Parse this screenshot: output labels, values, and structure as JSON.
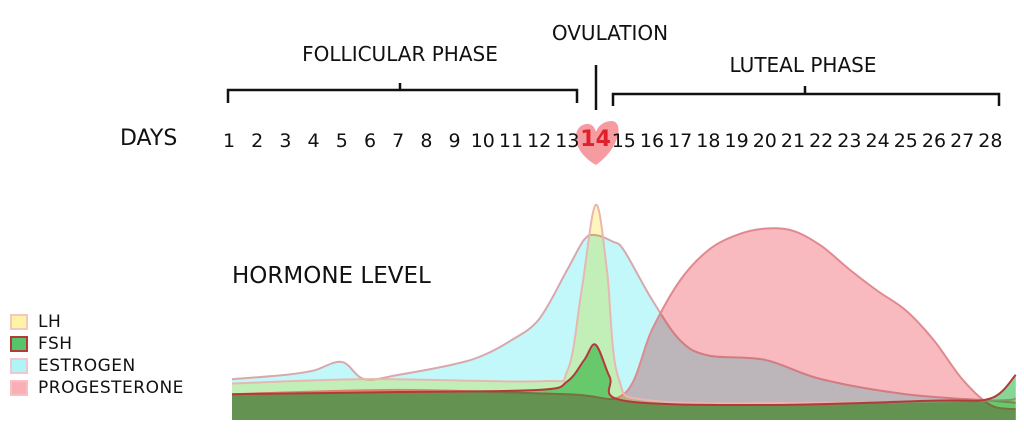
{
  "labels": {
    "follicular": "FOLLICULAR PHASE",
    "ovulation": "OVULATION",
    "luteal": "LUTEAL PHASE",
    "days": "DAYS",
    "hormone_level": "HORMONE LEVEL"
  },
  "colors": {
    "lh": "#fff3a6",
    "lh_stroke": "#e8b7b0",
    "fsh": "#55c46a",
    "fsh_stroke": "#b43a3a",
    "estrogen": "#aef5f8",
    "estrogen_stroke": "#d8a8ad",
    "progesterone": "#f6a3a8",
    "progesterone_stroke": "#e08a90",
    "heart": "#f48a8f",
    "heart_text": "#e0202a"
  },
  "chart_data": {
    "type": "area",
    "title": "HORMONE LEVEL",
    "xlabel": "DAYS",
    "ylabel": "",
    "x_ticks": [
      "1",
      "2",
      "3",
      "4",
      "5",
      "6",
      "7",
      "8",
      "9",
      "10",
      "11",
      "12",
      "13",
      "14",
      "15",
      "16",
      "17",
      "18",
      "19",
      "20",
      "21",
      "22",
      "23",
      "24",
      "25",
      "26",
      "27",
      "28"
    ],
    "highlight_tick": "14",
    "xlim": [
      1,
      28.9
    ],
    "ylim": [
      0,
      100
    ],
    "legend": [
      "LH",
      "FSH",
      "ESTROGEN",
      "PROGESTERONE"
    ],
    "legend_position": "bottom-left",
    "series": [
      {
        "name": "ESTROGEN",
        "key": "estrogen",
        "points": [
          [
            1,
            19
          ],
          [
            3,
            21
          ],
          [
            4,
            23
          ],
          [
            5,
            27
          ],
          [
            5.8,
            19
          ],
          [
            7,
            21
          ],
          [
            9,
            26
          ],
          [
            10,
            30
          ],
          [
            11,
            37
          ],
          [
            12,
            47
          ],
          [
            13,
            70
          ],
          [
            13.6,
            84
          ],
          [
            14,
            86
          ],
          [
            14.6,
            83
          ],
          [
            15,
            79
          ],
          [
            16,
            56
          ],
          [
            17,
            37
          ],
          [
            18,
            30
          ],
          [
            20,
            28
          ],
          [
            22,
            19
          ],
          [
            25,
            12
          ],
          [
            28,
            9
          ],
          [
            28.9,
            8
          ]
        ]
      },
      {
        "name": "PROGESTERONE",
        "key": "progesterone",
        "points": [
          [
            1,
            12
          ],
          [
            7,
            14
          ],
          [
            13,
            12
          ],
          [
            15,
            12
          ],
          [
            16,
            42
          ],
          [
            17,
            65
          ],
          [
            18,
            79
          ],
          [
            19,
            86
          ],
          [
            20,
            89
          ],
          [
            21,
            88
          ],
          [
            22,
            81
          ],
          [
            23,
            70
          ],
          [
            24,
            60
          ],
          [
            25,
            51
          ],
          [
            26,
            37
          ],
          [
            27,
            19
          ],
          [
            28,
            7
          ],
          [
            28.9,
            5
          ]
        ]
      },
      {
        "name": "LH",
        "key": "lh",
        "points": [
          [
            1,
            17
          ],
          [
            6,
            19
          ],
          [
            12,
            18
          ],
          [
            13,
            23
          ],
          [
            13.5,
            60
          ],
          [
            14,
            100
          ],
          [
            14.4,
            70
          ],
          [
            14.8,
            20
          ],
          [
            16,
            9
          ],
          [
            22,
            8
          ],
          [
            28,
            9
          ],
          [
            28.9,
            10
          ]
        ]
      },
      {
        "name": "FSH",
        "key": "fsh",
        "points": [
          [
            1,
            12
          ],
          [
            7,
            13
          ],
          [
            12,
            14
          ],
          [
            13,
            18
          ],
          [
            13.6,
            28
          ],
          [
            14,
            35
          ],
          [
            14.5,
            20
          ],
          [
            15,
            9
          ],
          [
            20,
            7
          ],
          [
            26,
            9
          ],
          [
            28,
            10
          ],
          [
            28.9,
            21
          ]
        ]
      }
    ]
  }
}
